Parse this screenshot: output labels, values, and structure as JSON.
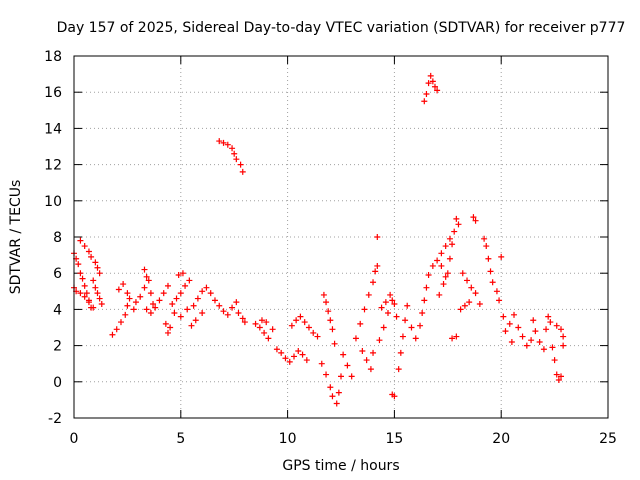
{
  "chart_data": {
    "type": "scatter",
    "title": "Day 157 of 2025, Sidereal Day-to-day VTEC variation (SDTVAR) for receiver p777",
    "xlabel": "GPS time / hours",
    "ylabel": "SDTVAR / TECUs",
    "xlim": [
      0,
      25
    ],
    "ylim": [
      -2,
      18
    ],
    "xticks": [
      0,
      5,
      10,
      15,
      20,
      25
    ],
    "yticks": [
      -2,
      0,
      2,
      4,
      6,
      8,
      10,
      12,
      14,
      16,
      18
    ],
    "grid": true,
    "marker": "+",
    "color": "#ff0000",
    "series": [
      {
        "name": "SDTVAR",
        "points": [
          [
            0.0,
            7.1
          ],
          [
            0.1,
            6.8
          ],
          [
            0.2,
            6.5
          ],
          [
            0.3,
            6.0
          ],
          [
            0.4,
            5.7
          ],
          [
            0.5,
            5.3
          ],
          [
            0.6,
            4.9
          ],
          [
            0.7,
            4.5
          ],
          [
            0.8,
            4.1
          ],
          [
            0.0,
            5.2
          ],
          [
            0.1,
            5.0
          ],
          [
            0.3,
            4.9
          ],
          [
            0.5,
            4.7
          ],
          [
            0.7,
            4.4
          ],
          [
            0.9,
            4.1
          ],
          [
            0.3,
            7.8
          ],
          [
            0.5,
            7.5
          ],
          [
            0.7,
            7.2
          ],
          [
            0.8,
            6.9
          ],
          [
            1.0,
            6.6
          ],
          [
            1.1,
            6.3
          ],
          [
            1.2,
            6.0
          ],
          [
            0.9,
            5.6
          ],
          [
            1.0,
            5.2
          ],
          [
            1.1,
            4.9
          ],
          [
            1.2,
            4.6
          ],
          [
            1.3,
            4.3
          ],
          [
            1.8,
            2.6
          ],
          [
            2.0,
            2.9
          ],
          [
            2.2,
            3.3
          ],
          [
            2.4,
            3.7
          ],
          [
            2.5,
            4.2
          ],
          [
            2.6,
            4.6
          ],
          [
            2.1,
            5.1
          ],
          [
            2.3,
            5.4
          ],
          [
            2.5,
            4.9
          ],
          [
            2.8,
            4.0
          ],
          [
            2.9,
            4.4
          ],
          [
            3.1,
            4.7
          ],
          [
            3.3,
            5.2
          ],
          [
            3.4,
            5.8
          ],
          [
            3.3,
            6.2
          ],
          [
            3.5,
            5.6
          ],
          [
            3.6,
            4.9
          ],
          [
            3.7,
            4.3
          ],
          [
            3.4,
            4.0
          ],
          [
            3.6,
            3.8
          ],
          [
            3.8,
            4.1
          ],
          [
            4.0,
            4.5
          ],
          [
            4.2,
            4.9
          ],
          [
            4.4,
            5.3
          ],
          [
            4.3,
            3.2
          ],
          [
            4.4,
            2.7
          ],
          [
            4.5,
            3.0
          ],
          [
            4.6,
            4.3
          ],
          [
            4.8,
            4.6
          ],
          [
            5.0,
            4.9
          ],
          [
            5.2,
            5.3
          ],
          [
            5.4,
            5.6
          ],
          [
            4.9,
            5.9
          ],
          [
            5.1,
            6.0
          ],
          [
            4.7,
            3.8
          ],
          [
            5.0,
            3.6
          ],
          [
            5.3,
            4.0
          ],
          [
            5.6,
            4.2
          ],
          [
            5.8,
            4.6
          ],
          [
            6.0,
            5.0
          ],
          [
            6.2,
            5.2
          ],
          [
            6.4,
            4.9
          ],
          [
            5.5,
            3.1
          ],
          [
            5.7,
            3.4
          ],
          [
            6.0,
            3.8
          ],
          [
            6.6,
            4.5
          ],
          [
            6.8,
            4.2
          ],
          [
            7.0,
            3.9
          ],
          [
            7.2,
            3.7
          ],
          [
            7.4,
            4.1
          ],
          [
            7.6,
            4.4
          ],
          [
            7.7,
            3.8
          ],
          [
            7.9,
            3.5
          ],
          [
            8.0,
            3.3
          ],
          [
            6.8,
            13.3
          ],
          [
            7.0,
            13.2
          ],
          [
            7.2,
            13.1
          ],
          [
            7.4,
            12.9
          ],
          [
            7.5,
            12.6
          ],
          [
            7.6,
            12.3
          ],
          [
            7.8,
            12.0
          ],
          [
            7.9,
            11.6
          ],
          [
            8.5,
            3.2
          ],
          [
            8.7,
            3.0
          ],
          [
            8.9,
            2.7
          ],
          [
            9.1,
            2.4
          ],
          [
            8.8,
            3.4
          ],
          [
            9.0,
            3.3
          ],
          [
            9.3,
            2.9
          ],
          [
            9.5,
            1.8
          ],
          [
            9.7,
            1.6
          ],
          [
            9.9,
            1.3
          ],
          [
            10.1,
            1.1
          ],
          [
            10.3,
            1.4
          ],
          [
            10.5,
            1.7
          ],
          [
            10.7,
            1.5
          ],
          [
            10.9,
            1.2
          ],
          [
            10.2,
            3.1
          ],
          [
            10.4,
            3.4
          ],
          [
            10.6,
            3.6
          ],
          [
            10.8,
            3.3
          ],
          [
            11.0,
            3.0
          ],
          [
            11.2,
            2.7
          ],
          [
            11.4,
            2.5
          ],
          [
            11.6,
            1.0
          ],
          [
            11.8,
            0.4
          ],
          [
            12.0,
            -0.3
          ],
          [
            12.1,
            -0.8
          ],
          [
            12.3,
            -1.2
          ],
          [
            12.4,
            -0.6
          ],
          [
            12.5,
            0.3
          ],
          [
            12.2,
            2.1
          ],
          [
            11.7,
            4.8
          ],
          [
            11.8,
            4.4
          ],
          [
            11.9,
            3.9
          ],
          [
            12.0,
            3.4
          ],
          [
            12.1,
            2.9
          ],
          [
            12.6,
            1.5
          ],
          [
            12.8,
            0.9
          ],
          [
            13.0,
            0.3
          ],
          [
            13.2,
            2.4
          ],
          [
            13.4,
            3.2
          ],
          [
            13.6,
            4.0
          ],
          [
            13.8,
            4.8
          ],
          [
            14.0,
            5.5
          ],
          [
            14.1,
            6.1
          ],
          [
            14.2,
            6.4
          ],
          [
            14.2,
            8.0
          ],
          [
            13.5,
            1.7
          ],
          [
            13.7,
            1.2
          ],
          [
            13.9,
            0.7
          ],
          [
            14.0,
            1.6
          ],
          [
            14.3,
            2.3
          ],
          [
            14.5,
            3.0
          ],
          [
            14.7,
            3.8
          ],
          [
            14.9,
            4.5
          ],
          [
            14.4,
            4.1
          ],
          [
            14.6,
            4.4
          ],
          [
            14.8,
            4.8
          ],
          [
            15.0,
            4.3
          ],
          [
            15.1,
            3.6
          ],
          [
            14.9,
            -0.7
          ],
          [
            15.0,
            -0.8
          ],
          [
            15.2,
            0.7
          ],
          [
            15.3,
            1.6
          ],
          [
            15.4,
            2.5
          ],
          [
            15.5,
            3.4
          ],
          [
            15.6,
            4.2
          ],
          [
            15.8,
            3.0
          ],
          [
            16.0,
            2.4
          ],
          [
            16.2,
            3.1
          ],
          [
            16.3,
            3.8
          ],
          [
            16.4,
            4.5
          ],
          [
            16.5,
            5.2
          ],
          [
            16.6,
            5.9
          ],
          [
            16.8,
            6.4
          ],
          [
            17.0,
            6.7
          ],
          [
            17.2,
            6.4
          ],
          [
            17.4,
            5.8
          ],
          [
            16.4,
            15.5
          ],
          [
            16.5,
            15.9
          ],
          [
            16.6,
            16.5
          ],
          [
            16.7,
            16.9
          ],
          [
            16.8,
            16.6
          ],
          [
            16.9,
            16.3
          ],
          [
            17.0,
            16.1
          ],
          [
            17.1,
            4.8
          ],
          [
            17.3,
            5.4
          ],
          [
            17.5,
            6.0
          ],
          [
            17.6,
            6.8
          ],
          [
            17.7,
            7.6
          ],
          [
            17.8,
            8.3
          ],
          [
            17.9,
            9.0
          ],
          [
            18.0,
            8.7
          ],
          [
            17.2,
            7.1
          ],
          [
            17.4,
            7.5
          ],
          [
            17.6,
            7.9
          ],
          [
            17.7,
            2.4
          ],
          [
            17.9,
            2.5
          ],
          [
            18.1,
            4.0
          ],
          [
            18.3,
            4.2
          ],
          [
            18.5,
            4.4
          ],
          [
            18.2,
            6.0
          ],
          [
            18.4,
            5.6
          ],
          [
            18.6,
            5.2
          ],
          [
            18.8,
            4.9
          ],
          [
            18.7,
            9.1
          ],
          [
            18.8,
            8.9
          ],
          [
            19.0,
            4.3
          ],
          [
            19.2,
            7.9
          ],
          [
            19.3,
            7.5
          ],
          [
            19.4,
            6.8
          ],
          [
            19.5,
            6.1
          ],
          [
            19.6,
            5.5
          ],
          [
            19.8,
            5.0
          ],
          [
            19.9,
            4.5
          ],
          [
            20.0,
            6.9
          ],
          [
            20.1,
            3.6
          ],
          [
            20.2,
            2.8
          ],
          [
            20.4,
            3.2
          ],
          [
            20.6,
            3.7
          ],
          [
            20.8,
            3.0
          ],
          [
            21.0,
            2.5
          ],
          [
            21.2,
            2.0
          ],
          [
            21.4,
            2.3
          ],
          [
            21.6,
            2.8
          ],
          [
            21.8,
            2.2
          ],
          [
            22.0,
            1.8
          ],
          [
            22.2,
            3.6
          ],
          [
            22.3,
            3.3
          ],
          [
            22.4,
            1.9
          ],
          [
            22.5,
            1.2
          ],
          [
            22.6,
            0.4
          ],
          [
            22.7,
            0.1
          ],
          [
            22.8,
            2.9
          ],
          [
            22.9,
            2.5
          ],
          [
            22.9,
            2.0
          ],
          [
            22.8,
            0.3
          ],
          [
            22.6,
            3.1
          ],
          [
            20.5,
            2.2
          ],
          [
            21.5,
            3.4
          ],
          [
            22.1,
            2.9
          ]
        ]
      }
    ]
  }
}
